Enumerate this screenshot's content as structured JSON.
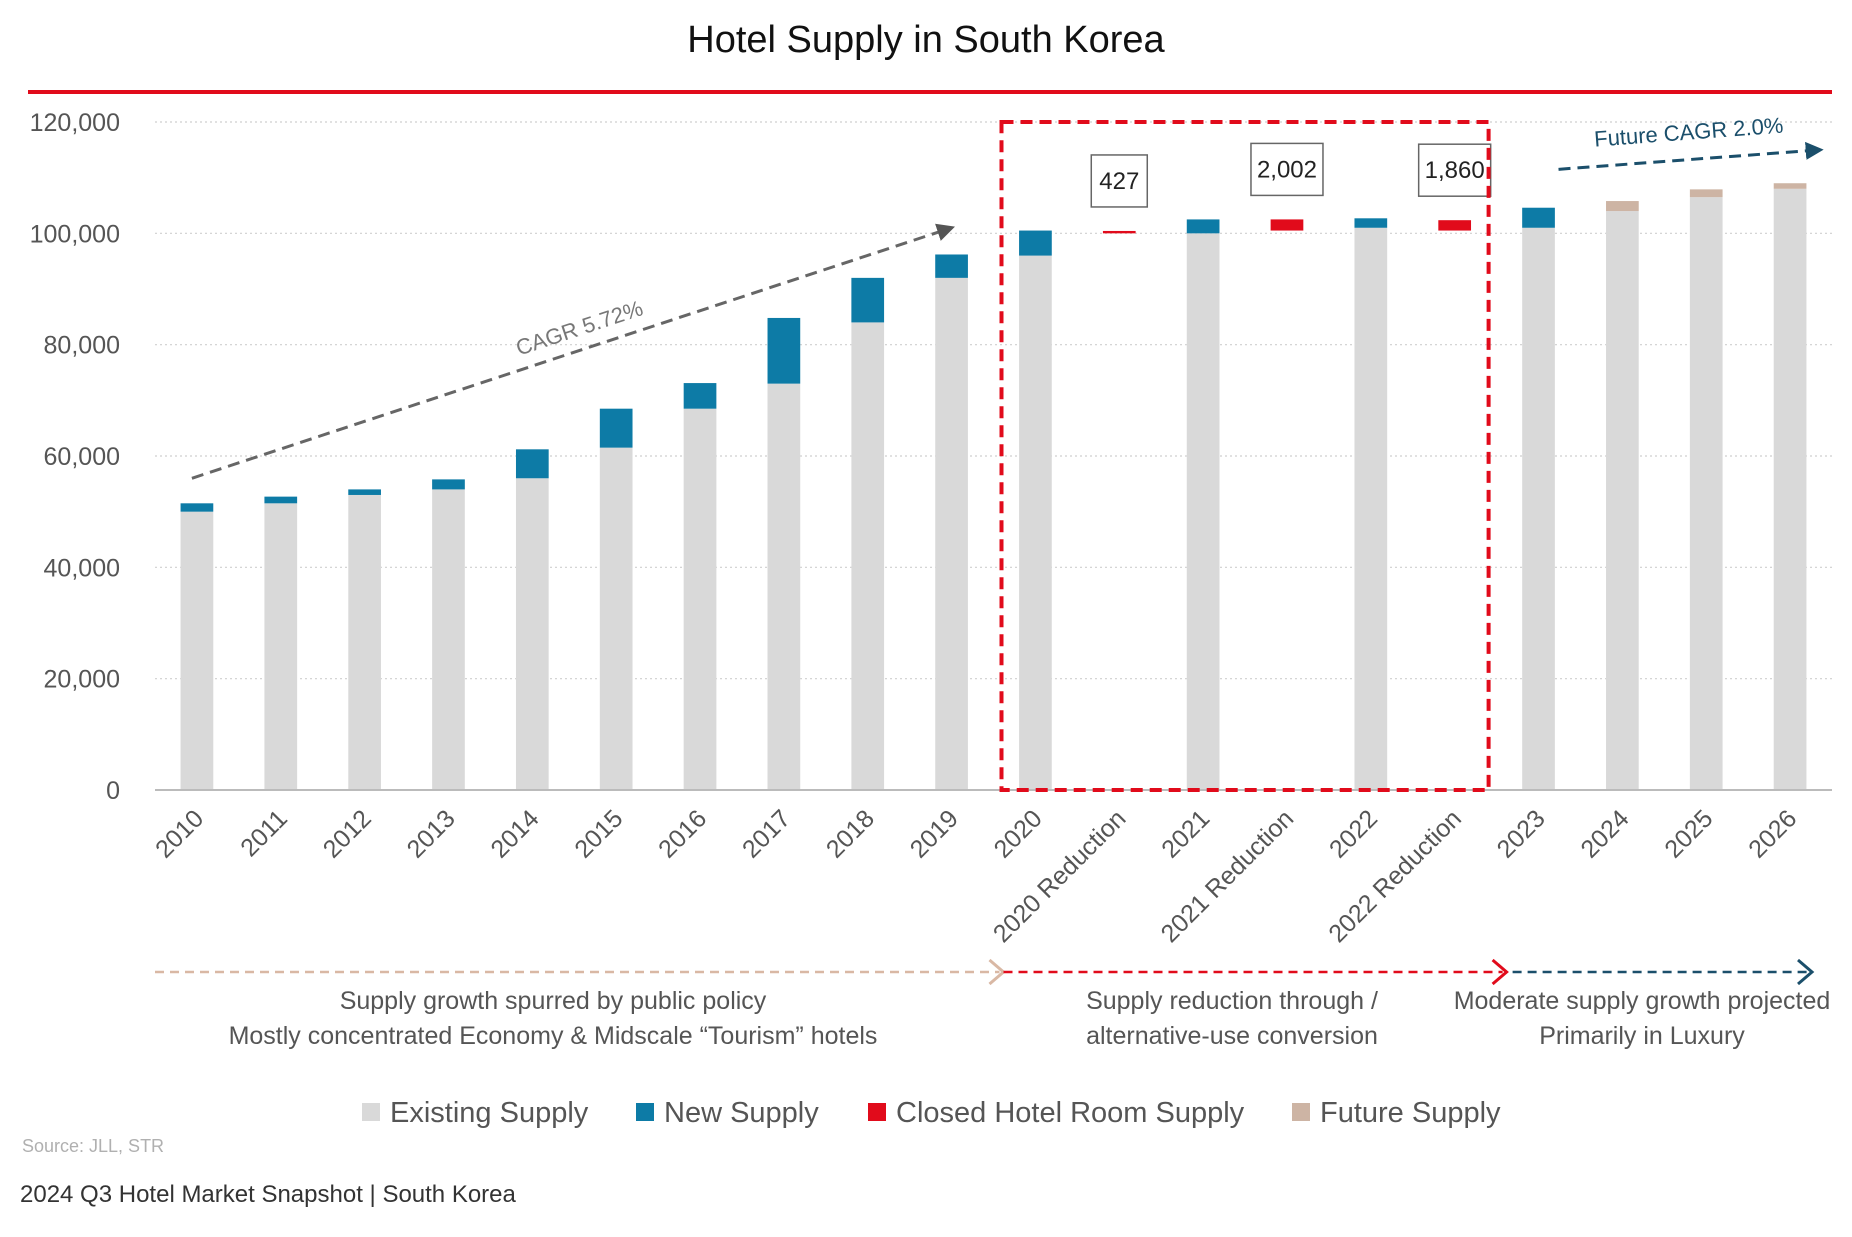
{
  "chart_data": {
    "type": "bar",
    "title": "Hotel  Supply in South Korea",
    "ylim": [
      0,
      120000
    ],
    "y_ticks": [
      0,
      20000,
      40000,
      60000,
      80000,
      100000,
      120000
    ],
    "y_tick_labels": [
      "0",
      "20,000",
      "40,000",
      "60,000",
      "80,000",
      "100,000",
      "120,000"
    ],
    "grid": true,
    "stacked": true,
    "categories": [
      "2010",
      "2011",
      "2012",
      "2013",
      "2014",
      "2015",
      "2016",
      "2017",
      "2018",
      "2019",
      "2020",
      "2020 Reduction",
      "2021",
      "2021 Reduction",
      "2022",
      "2022 Reduction",
      "2023",
      "2024",
      "2025",
      "2026"
    ],
    "series": [
      {
        "name": "Existing Supply",
        "color": "#d9d9d9",
        "values": [
          50000,
          51500,
          53000,
          54000,
          56000,
          61500,
          68500,
          73000,
          84000,
          92000,
          96000,
          null,
          100000,
          null,
          101000,
          null,
          101000,
          104000,
          106500,
          108000
        ]
      },
      {
        "name": "New Supply",
        "color": "#0d7ba6",
        "values": [
          1500,
          1200,
          1000,
          1800,
          5200,
          7000,
          4600,
          11800,
          8000,
          4200,
          4500,
          null,
          2500,
          null,
          1700,
          null,
          3600,
          null,
          null,
          null
        ]
      },
      {
        "name": "Closed Hotel Room Supply",
        "color": "#e10b1b",
        "values": [
          null,
          null,
          null,
          null,
          null,
          null,
          null,
          null,
          null,
          null,
          null,
          427,
          null,
          2002,
          null,
          1860,
          null,
          null,
          null,
          null
        ],
        "base": [
          null,
          null,
          null,
          null,
          null,
          null,
          null,
          null,
          null,
          null,
          null,
          100000,
          null,
          100500,
          null,
          100500,
          null,
          null,
          null,
          null
        ]
      },
      {
        "name": "Future Supply",
        "color": "#cdb4a4",
        "values": [
          null,
          null,
          null,
          null,
          null,
          null,
          null,
          null,
          null,
          null,
          null,
          null,
          null,
          null,
          null,
          null,
          null,
          1800,
          1400,
          1000
        ]
      }
    ],
    "data_labels": [
      {
        "category": "2020 Reduction",
        "text": "427"
      },
      {
        "category": "2021 Reduction",
        "text": "2,002"
      },
      {
        "category": "2022 Reduction",
        "text": "1,860"
      }
    ],
    "annotations": {
      "cagr_past": "CAGR 5.72%",
      "cagr_future": "Future CAGR 2.0%"
    },
    "phases": [
      {
        "lines": [
          "Supply growth spurred by public policy",
          "Mostly concentrated Economy & Midscale “Tourism” hotels"
        ],
        "color": "#d9b8a4"
      },
      {
        "lines": [
          "Supply reduction through /",
          "alternative-use conversion"
        ],
        "color": "#e10b1b"
      },
      {
        "lines": [
          "Moderate supply growth projected",
          "Primarily in Luxury"
        ],
        "color": "#1b4f6b"
      }
    ],
    "legend_position": "bottom"
  },
  "source": "Source: JLL, STR",
  "footer": "2024 Q3 Hotel Market Snapshot | South Korea",
  "colors": {
    "accent": "#e10b1b",
    "highlight_box": "#e10b1b",
    "grid": "#d0d0d0"
  }
}
